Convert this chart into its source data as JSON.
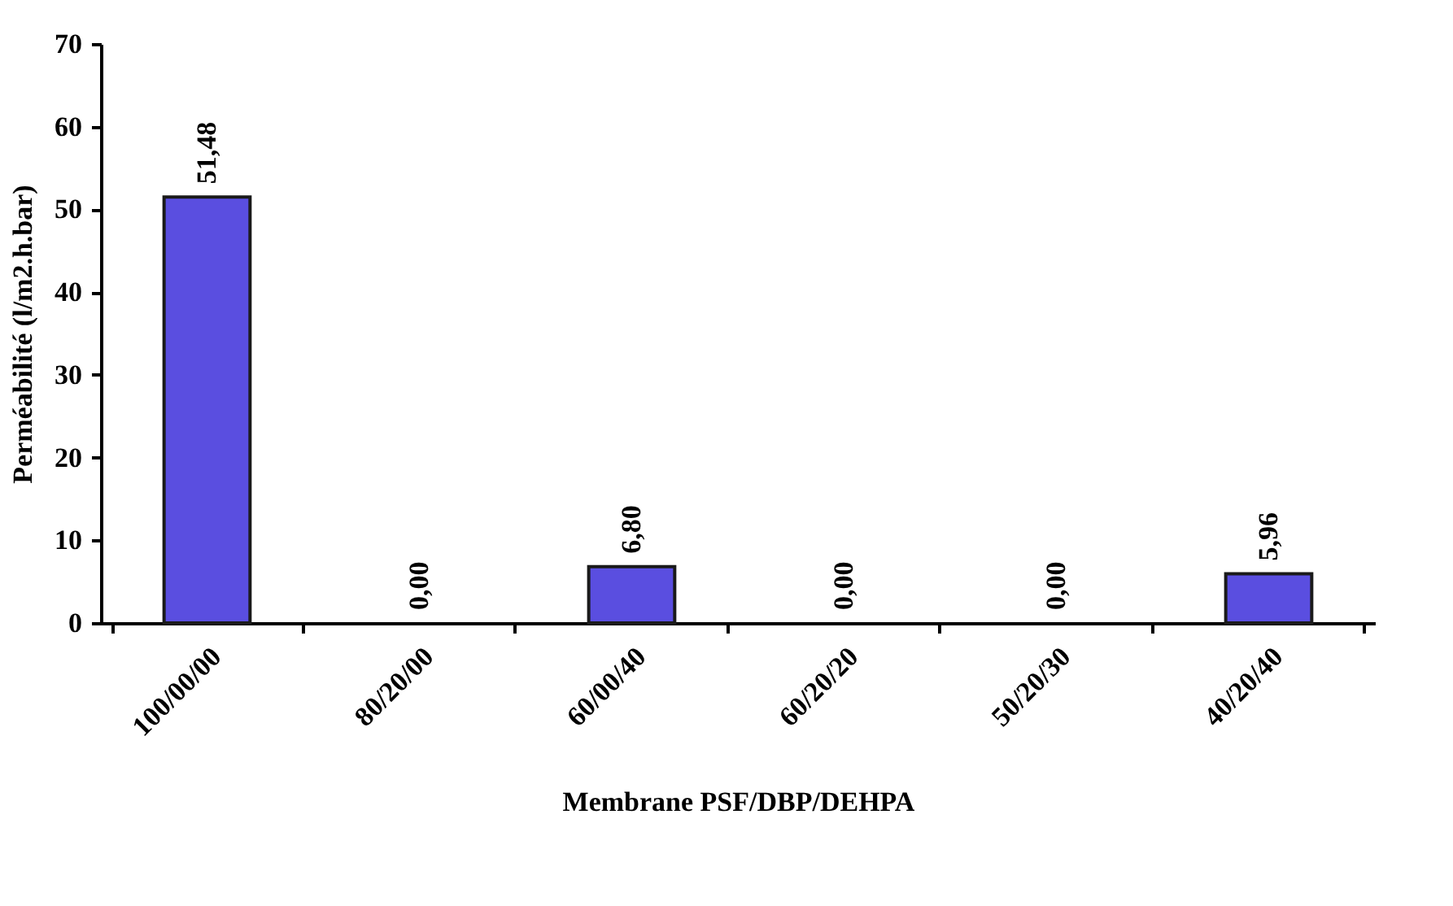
{
  "chart_data": {
    "type": "bar",
    "xlabel": "Membrane PSF/DBP/DEHPA",
    "ylabel": "Perméabilité (l/m2.h.bar)",
    "categories": [
      "100/00/00",
      "80/20/00",
      "60/00/40",
      "60/20/20",
      "50/20/30",
      "40/20/40"
    ],
    "values": [
      51.48,
      0,
      6.8,
      0,
      0,
      5.96
    ],
    "value_labels": [
      "51,48",
      "0,00",
      "6,80",
      "0,00",
      "0,00",
      "5,96"
    ],
    "color": "#5a4ee0",
    "ylim": [
      0,
      70
    ],
    "yticks": [
      0,
      10,
      20,
      30,
      40,
      50,
      60,
      70
    ],
    "grid": false
  }
}
